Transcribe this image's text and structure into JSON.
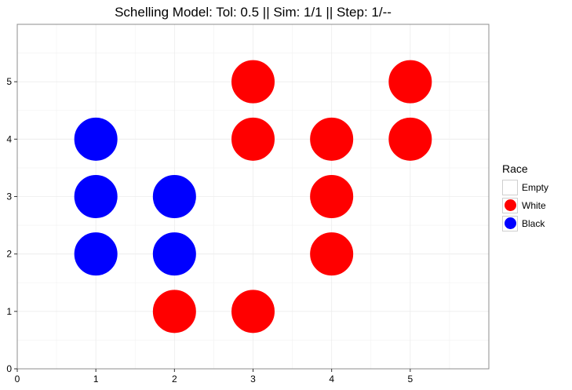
{
  "chart_data": {
    "type": "scatter",
    "title": "Schelling Model: Tol: 0.5 || Sim: 1/1 || Step: 1/--",
    "xlabel": "",
    "ylabel": "",
    "xlim": [
      0,
      6
    ],
    "ylim": [
      0,
      6
    ],
    "x_ticks": [
      "0",
      "1",
      "2",
      "3",
      "4",
      "5"
    ],
    "y_ticks": [
      "0",
      "1",
      "2",
      "3",
      "4",
      "5"
    ],
    "grid": true,
    "legend_position": "right",
    "legend": {
      "title": "Race",
      "entries": [
        {
          "label": "Empty",
          "color": "#FFFFFF"
        },
        {
          "label": "White",
          "color": "#FF0000"
        },
        {
          "label": "Black",
          "color": "#0000FF"
        }
      ]
    },
    "series": [
      {
        "name": "White",
        "color": "#FF0000",
        "points": [
          [
            3,
            5
          ],
          [
            5,
            5
          ],
          [
            3,
            4
          ],
          [
            4,
            4
          ],
          [
            5,
            4
          ],
          [
            4,
            3
          ],
          [
            4,
            2
          ],
          [
            2,
            1
          ],
          [
            3,
            1
          ]
        ]
      },
      {
        "name": "Black",
        "color": "#0000FF",
        "points": [
          [
            1,
            4
          ],
          [
            1,
            3
          ],
          [
            2,
            3
          ],
          [
            1,
            2
          ],
          [
            2,
            2
          ]
        ]
      }
    ]
  }
}
